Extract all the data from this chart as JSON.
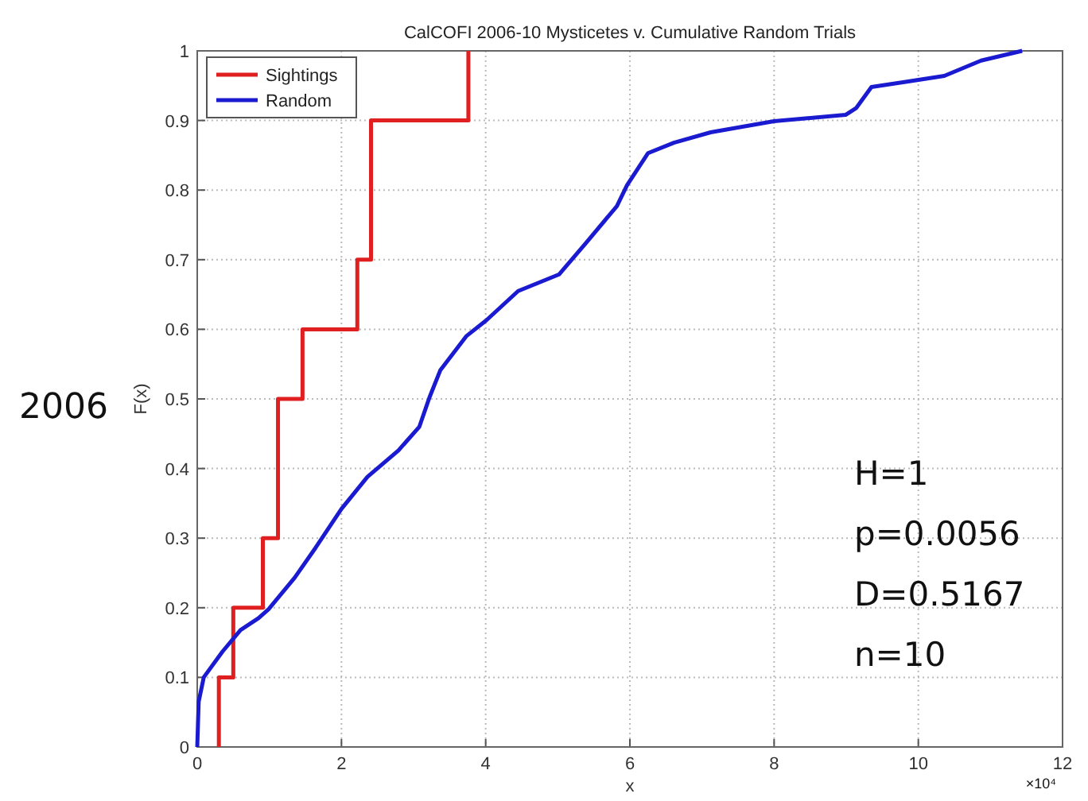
{
  "chart_data": {
    "type": "line",
    "title": "CalCOFI 2006-10 Mysticetes v. Cumulative Random Trials",
    "xlabel": "x",
    "ylabel": "F(x)",
    "xlim": [
      0,
      12
    ],
    "xticks": [
      0,
      2,
      4,
      6,
      8,
      10,
      12
    ],
    "ylim": [
      0,
      1
    ],
    "yticks": [
      0,
      0.1,
      0.2,
      0.3,
      0.4,
      0.5,
      0.6,
      0.7,
      0.8,
      0.9,
      1
    ],
    "grid": true,
    "legend": "top left",
    "line_style": "solid",
    "annotations": [
      "×10⁴",
      "2006",
      "H=1",
      "p=0.0056",
      "D=0.5167",
      "n=10"
    ],
    "series": [
      {
        "name": "Sightings",
        "type": "step",
        "color": "#e02020",
        "x": [
          0.3,
          0.3,
          0.5,
          0.91,
          1.12,
          1.46,
          2.22,
          2.41,
          3.76
        ],
        "values": [
          0,
          0.1,
          0.2,
          0.3,
          0.5,
          0.6,
          0.7,
          0.9,
          1
        ]
      },
      {
        "name": "Random",
        "color": "#1a1ad0",
        "x": [
          0,
          0.02,
          0.09,
          0.35,
          0.6,
          0.85,
          0.99,
          1.35,
          1.64,
          2.0,
          2.36,
          2.79,
          3.08,
          3.22,
          3.37,
          3.73,
          4.01,
          4.45,
          5.02,
          5.39,
          5.82,
          5.96,
          6.25,
          6.61,
          7.12,
          8.0,
          8.99,
          9.14,
          9.35,
          9.86,
          10.36,
          10.87,
          11.44
        ],
        "values": [
          0,
          0.065,
          0.1,
          0.137,
          0.168,
          0.185,
          0.198,
          0.243,
          0.286,
          0.342,
          0.388,
          0.426,
          0.46,
          0.502,
          0.541,
          0.59,
          0.613,
          0.655,
          0.679,
          0.724,
          0.777,
          0.807,
          0.853,
          0.868,
          0.883,
          0.899,
          0.908,
          0.918,
          0.948,
          0.956,
          0.964,
          0.986,
          1
        ]
      }
    ]
  }
}
